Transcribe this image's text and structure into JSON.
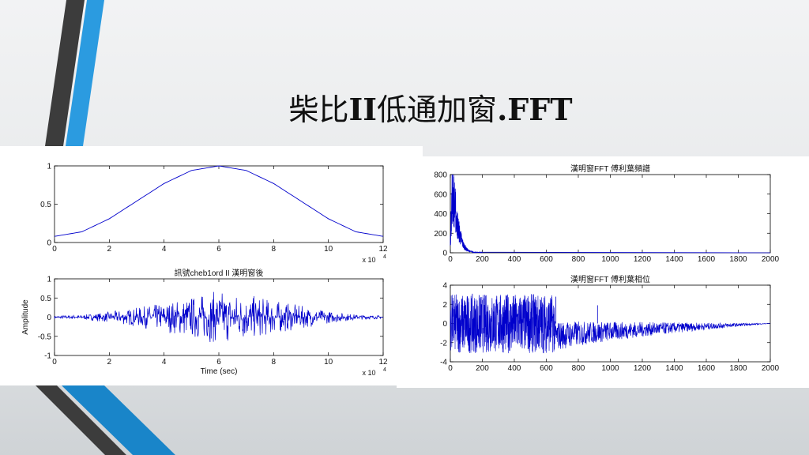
{
  "slide": {
    "title_cjk": "柴比",
    "title_roman": "II",
    "title_cjk2": "低通加窗",
    "title_suffix": ".FFT"
  },
  "colors": {
    "series": "#0000cc",
    "deco_dark": "#3c3c3c",
    "deco_blue": "#1e90d8"
  },
  "chart_data": [
    {
      "id": "window",
      "type": "line",
      "title": "",
      "xlabel": "",
      "ylabel": "",
      "x_multiplier": "x 10",
      "x_exponent": "4",
      "xlim": [
        0,
        12
      ],
      "ylim": [
        0,
        1
      ],
      "xticks": [
        "0",
        "2",
        "4",
        "6",
        "8",
        "10",
        "12"
      ],
      "yticks": [
        "0",
        "0.5",
        "1"
      ],
      "series": [
        {
          "x": [
            0,
            1,
            2,
            3,
            4,
            5,
            6,
            7,
            8,
            9,
            10,
            11,
            12
          ],
          "y": [
            0.08,
            0.14,
            0.31,
            0.54,
            0.77,
            0.94,
            1.0,
            0.94,
            0.77,
            0.54,
            0.31,
            0.14,
            0.08
          ]
        }
      ]
    },
    {
      "id": "signal",
      "type": "line",
      "title": "訊號cheb1ord II 漢明窗後",
      "xlabel": "Time (sec)",
      "ylabel": "Amplitude",
      "x_multiplier": "x 10",
      "x_exponent": "4",
      "xlim": [
        0,
        12
      ],
      "ylim": [
        -1,
        1
      ],
      "xticks": [
        "0",
        "2",
        "4",
        "6",
        "8",
        "10",
        "12"
      ],
      "yticks": [
        "-1",
        "-0.5",
        "0",
        "0.5",
        "1"
      ],
      "envelope": {
        "x": [
          0,
          1,
          2,
          3,
          4,
          5,
          6,
          7,
          8,
          9,
          10,
          11,
          12
        ],
        "amp": [
          0.04,
          0.06,
          0.14,
          0.25,
          0.38,
          0.55,
          0.7,
          0.6,
          0.45,
          0.3,
          0.16,
          0.07,
          0.04
        ]
      }
    },
    {
      "id": "spectrum",
      "type": "line",
      "title": "漢明窗FFT 傅利葉頻譜",
      "xlabel": "",
      "ylabel": "",
      "xlim": [
        0,
        2000
      ],
      "ylim": [
        0,
        800
      ],
      "xticks": [
        "0",
        "200",
        "400",
        "600",
        "800",
        "1000",
        "1200",
        "1400",
        "1600",
        "1800",
        "2000"
      ],
      "yticks": [
        "0",
        "200",
        "400",
        "600",
        "800"
      ],
      "series": [
        {
          "x": [
            0,
            10,
            20,
            30,
            40,
            60,
            80,
            100,
            120,
            150,
            2000
          ],
          "y": [
            120,
            780,
            760,
            600,
            420,
            240,
            110,
            50,
            20,
            6,
            0
          ]
        }
      ]
    },
    {
      "id": "phase",
      "type": "line",
      "title": "漢明窗FFT 傅利葉相位",
      "xlabel": "",
      "ylabel": "",
      "xlim": [
        0,
        2000
      ],
      "ylim": [
        -4,
        4
      ],
      "xticks": [
        "0",
        "200",
        "400",
        "600",
        "800",
        "1000",
        "1200",
        "1400",
        "1600",
        "1800",
        "2000"
      ],
      "yticks": [
        "-4",
        "-2",
        "0",
        "2",
        "4"
      ],
      "phase_regions": [
        {
          "x_start": 0,
          "x_end": 650,
          "y_min": -3.1,
          "y_max": 3.1
        },
        {
          "x_start": 650,
          "x_end": 2000,
          "y_min_start": -3.0,
          "y_max_start": 0.3,
          "y_end": 0
        }
      ],
      "spikes": [
        {
          "x": 660,
          "y": 2.8
        },
        {
          "x": 920,
          "y": 1.9
        }
      ]
    }
  ]
}
